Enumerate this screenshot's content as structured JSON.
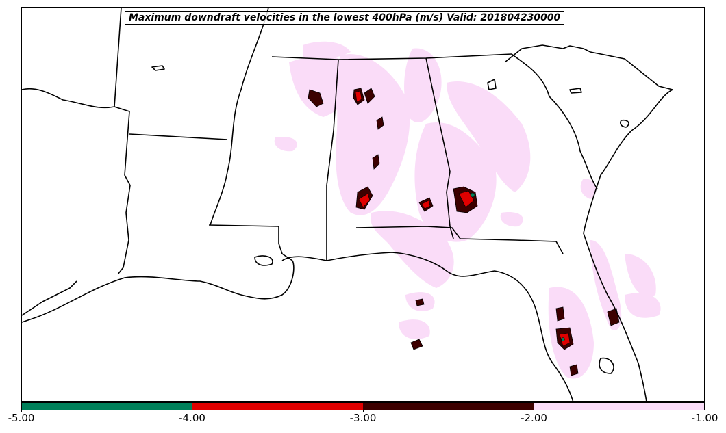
{
  "title": "Maximum downdraft velocities in the lowest 400hPa (m/s) Valid: 201804230000",
  "colorbar": {
    "colors": [
      "#00805a",
      "#e00000",
      "#3c0000",
      "#fadcf8"
    ],
    "tick_labels": [
      "-5.00",
      "-4.00",
      "-3.00",
      "-2.00",
      "-1.00"
    ]
  },
  "map": {
    "land_color": "#ffffff",
    "border_color": "#000000",
    "shading_colors": {
      "weak": "#fadcf8",
      "moderate": "#3c0000",
      "strong": "#e00000",
      "extreme": "#00805a"
    }
  }
}
